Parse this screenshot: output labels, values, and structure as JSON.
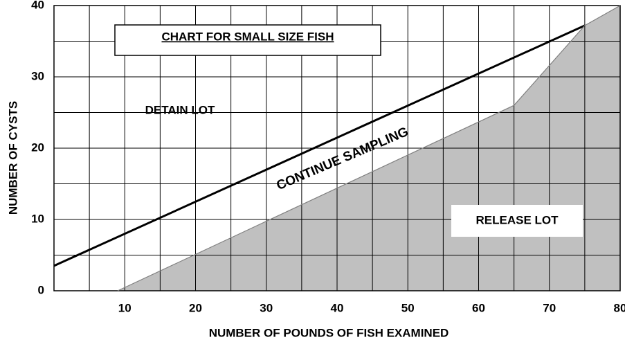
{
  "chart_data": {
    "type": "line",
    "title": "CHART FOR SMALL SIZE FISH",
    "x_label": "NUMBER OF POUNDS OF FISH EXAMINED",
    "y_label": "NUMBER OF CYSTS",
    "annotations": [
      "DETAIN LOT",
      "CONTINUE SAMPLING",
      "RELEASE LOT"
    ],
    "series": [
      {
        "color": "#000000",
        "x": [
          0,
          75
        ],
        "values": [
          3.5,
          37.2
        ]
      },
      {
        "color": "#808080",
        "x": [
          9,
          65,
          75,
          80
        ],
        "values": [
          0,
          26,
          37.2,
          40
        ],
        "fill": "#c0c0c0"
      }
    ],
    "xlim": [
      0,
      80
    ],
    "ylim": [
      0,
      40
    ],
    "xticks": [
      10,
      20,
      30,
      40,
      50,
      60,
      70,
      80
    ],
    "yticks": [
      0,
      10,
      20,
      30,
      40
    ],
    "x_minor_ticks": [
      5,
      15,
      25,
      35,
      45,
      55,
      65,
      75
    ],
    "y_minor_ticks": [
      5,
      15,
      25,
      35
    ],
    "grid": true
  }
}
